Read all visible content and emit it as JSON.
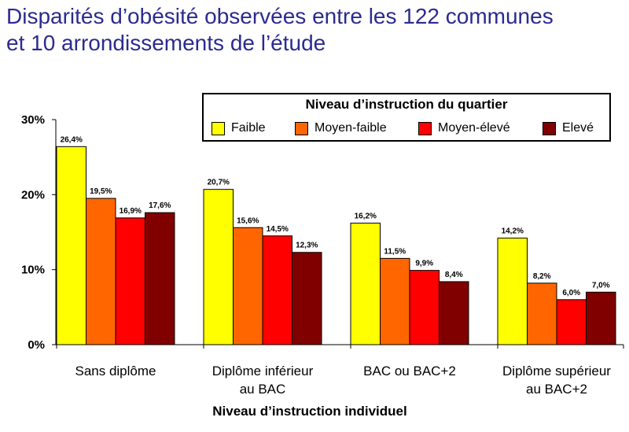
{
  "title": {
    "line1": "Disparités d’obésité observées entre les 122 communes",
    "line2": "et 10 arrondissements de l’étude"
  },
  "colors": {
    "title": "#2b2b8f",
    "series": [
      "#ffff00",
      "#ff6600",
      "#ff0000",
      "#800000"
    ]
  },
  "chart_data": {
    "type": "bar",
    "categories": [
      [
        "Sans diplôme"
      ],
      [
        "Diplôme inférieur",
        "au BAC"
      ],
      [
        "BAC ou BAC+2"
      ],
      [
        "Diplôme supérieur",
        "au BAC+2"
      ]
    ],
    "series": [
      {
        "name": "Faible",
        "values": [
          26.4,
          20.7,
          16.2,
          14.2
        ],
        "labels": [
          "26,4%",
          "20,7%",
          "16,2%",
          "14,2%"
        ]
      },
      {
        "name": "Moyen-faible",
        "values": [
          19.5,
          15.6,
          11.5,
          8.2
        ],
        "labels": [
          "19,5%",
          "15,6%",
          "11,5%",
          "8,2%"
        ]
      },
      {
        "name": "Moyen-élevé",
        "values": [
          16.9,
          14.5,
          9.9,
          6.0
        ],
        "labels": [
          "16,9%",
          "14,5%",
          "9,9%",
          "6,0%"
        ]
      },
      {
        "name": "Elevé",
        "values": [
          17.6,
          12.3,
          8.4,
          7.0
        ],
        "labels": [
          "17,6%",
          "12,3%",
          "8,4%",
          "7,0%"
        ]
      }
    ],
    "xlabel": "Niveau d’instruction individuel",
    "ylabel": "",
    "ylim": [
      0,
      30
    ],
    "yticks": [
      0,
      10,
      20,
      30
    ],
    "yticklabels": [
      "0%",
      "10%",
      "20%",
      "30%"
    ],
    "legend_title": "Niveau d’instruction du quartier",
    "legend_position": "top-right",
    "grid": false
  }
}
